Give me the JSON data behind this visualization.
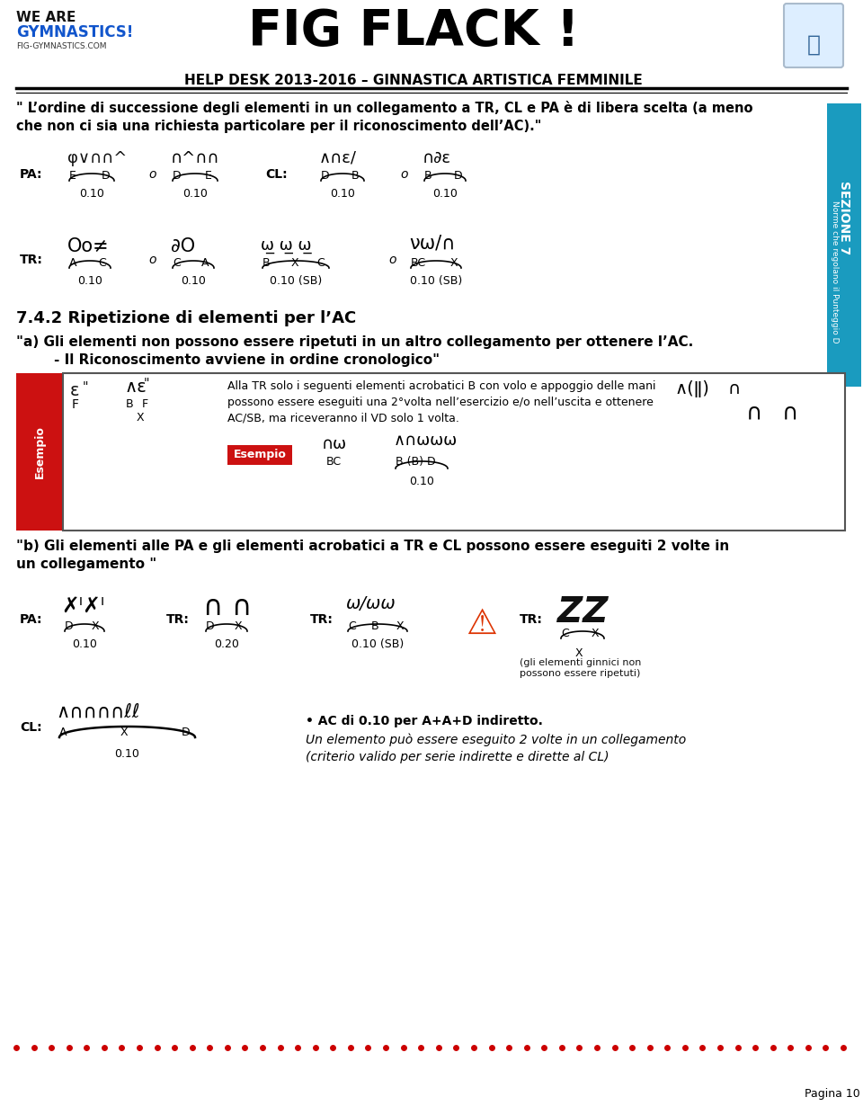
{
  "page_width": 9.6,
  "page_height": 12.3,
  "bg_color": "#ffffff",
  "header_title": "FIG FLACK !",
  "header_subtitle": "HELP DESK 2013-2016 – GINNASTICA ARTISTICA FEMMINILE",
  "section_label": "SEZIONE 7",
  "section_sublabel": "Norme che regolano il Punteggio D",
  "section_bg": "#1a9bbf",
  "quote_text": "\" L’ordine di successione degli elementi in un collegamento a TR, CL e PA è di libera scelta (a meno\nche non ci sia una richiesta particolare per il riconoscimento dell’AC).\"",
  "section_title": "7.4.2 Ripetizione di elementi per l’AC",
  "rule_a_line1": "\"a) Gli elementi non possono essere ripetuti in un altro collegamento per ottenere l’AC.",
  "rule_a_line2": "        - Il Riconoscimento avviene in ordine cronologico\"",
  "esempio_label": "Esempio",
  "esempio_box_text": "Alla TR solo i seguenti elementi acrobatici B con volo e appoggio delle mani\npossono essere eseguiti una 2°volta nell’esercizio e/o nell’uscita e ottenere\nAC/SB, ma riceveranno il VD solo 1 volta.",
  "esempio_red_label": "Esempio",
  "esempio_bc_label": "BC",
  "esempio_bbd_label": "B (B) D",
  "esempio_010": "0.10",
  "rule_b_line1": "\"b) Gli elementi alle PA e gli elementi acrobatici a TR e CL possono essere eseguiti 2 volte in",
  "rule_b_line2": "un collegamento \"",
  "pa_val": "0.10",
  "tr1_val": "0.20",
  "tr2_val": "0.10 (SB)",
  "tr3_note": "(gli elementi ginnici non\npossono essere ripetuti)",
  "cl_val": "0.10",
  "bullet_text": "• AC di 0.10 per A+A+D indiretto.",
  "italic_text": "Un elemento può essere eseguito 2 volte in un collegamento\n(criterio valido per serie indirette e dirette al CL)",
  "footer_dots_color": "#cc0000",
  "footer_page": "Pagina 10"
}
